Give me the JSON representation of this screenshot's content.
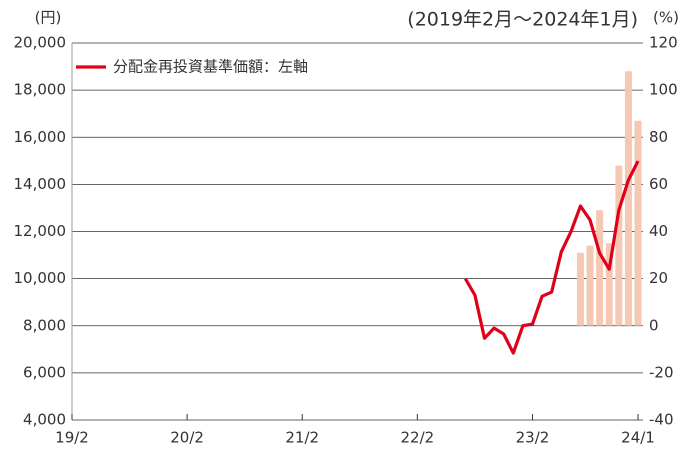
{
  "chart_data": {
    "type": "bar-line",
    "title": "(2019年2月～2024年1月)",
    "y_label": "(円)",
    "y2_label": "(%)",
    "categories": [
      "19/2",
      null,
      null,
      null,
      null,
      null,
      null,
      null,
      null,
      null,
      null,
      null,
      "20/2",
      null,
      null,
      null,
      null,
      null,
      null,
      null,
      null,
      null,
      null,
      null,
      "21/2",
      null,
      null,
      null,
      null,
      null,
      null,
      null,
      null,
      null,
      null,
      null,
      "22/2",
      null,
      null,
      null,
      null,
      null,
      null,
      null,
      null,
      null,
      null,
      null,
      "23/2",
      null,
      null,
      null,
      null,
      null,
      null,
      null,
      null,
      null,
      null,
      "24/1"
    ],
    "series": [
      {
        "color": "#f6c8b4",
        "axis": "y2",
        "kind": "bar",
        "values": [
          null,
          null,
          null,
          null,
          null,
          null,
          null,
          null,
          null,
          null,
          null,
          null,
          null,
          null,
          null,
          null,
          null,
          null,
          null,
          null,
          null,
          null,
          null,
          null,
          null,
          null,
          null,
          null,
          null,
          null,
          null,
          null,
          null,
          null,
          null,
          null,
          null,
          null,
          null,
          null,
          null,
          null,
          null,
          null,
          null,
          null,
          null,
          null,
          null,
          null,
          null,
          null,
          null,
          31,
          34,
          49,
          35,
          68,
          108,
          87
        ]
      },
      {
        "name": "分配金再投資基準価額：左軸",
        "color": "#e0001b",
        "kind": "line",
        "values": [
          null,
          null,
          null,
          null,
          null,
          null,
          null,
          null,
          null,
          null,
          null,
          null,
          null,
          null,
          null,
          null,
          null,
          null,
          null,
          null,
          null,
          null,
          null,
          null,
          null,
          null,
          null,
          null,
          null,
          null,
          null,
          null,
          null,
          null,
          null,
          null,
          null,
          null,
          null,
          null,
          null,
          10000,
          9300,
          7470,
          7900,
          7650,
          6840,
          8000,
          8070,
          9250,
          9430,
          11130,
          11980,
          13080,
          12490,
          11080,
          10400,
          12900,
          14180,
          14990
        ]
      }
    ],
    "ylim": [
      4000,
      20000
    ],
    "yticks": [
      {
        "value": 4000,
        "label": "4,000"
      },
      {
        "value": 6000,
        "label": "6,000"
      },
      {
        "value": 8000,
        "label": "8,000"
      },
      {
        "value": 10000,
        "label": "10,000"
      },
      {
        "value": 12000,
        "label": "12,000"
      },
      {
        "value": 14000,
        "label": "14,000"
      },
      {
        "value": 16000,
        "label": "16,000"
      },
      {
        "value": 18000,
        "label": "18,000"
      },
      {
        "value": 20000,
        "label": "20,000"
      }
    ],
    "y2lim": [
      -40,
      120
    ],
    "y2ticks": [
      -40,
      -20,
      0,
      20,
      40,
      60,
      80,
      100,
      120
    ],
    "grid": true
  }
}
